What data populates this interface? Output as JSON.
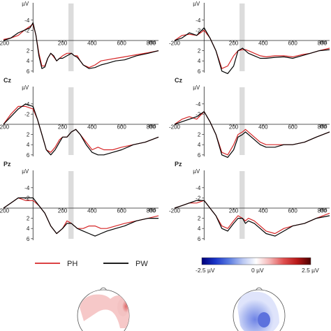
{
  "chart_data": [
    {
      "panel": "left-top",
      "electrode": "",
      "type": "line",
      "ylabel": "µV",
      "xlabel": "ms",
      "x_ticks": [
        "-200",
        "200",
        "400",
        "600",
        "800"
      ],
      "y_ticks": [
        "-4",
        "-2",
        "2",
        "4",
        "6"
      ],
      "xlim": [
        -200,
        850
      ],
      "ylim": [
        -6,
        6.5
      ],
      "highlight_ms": [
        240,
        275
      ],
      "series": [
        {
          "name": "PH",
          "color": "#d62728",
          "x": [
            -200,
            -150,
            -100,
            -60,
            -20,
            0,
            20,
            40,
            60,
            80,
            100,
            120,
            140,
            160,
            180,
            200,
            230,
            260,
            280,
            300,
            320,
            340,
            380,
            420,
            460,
            500,
            560,
            620,
            700,
            780,
            850
          ],
          "y": [
            -0.2,
            -0.5,
            -1.0,
            -2.0,
            -2.8,
            -3.2,
            -1.0,
            2.5,
            5.0,
            5.0,
            3.5,
            2.5,
            3.2,
            4.0,
            3.5,
            3.0,
            2.5,
            2.5,
            3.0,
            3.0,
            4.0,
            4.8,
            5.3,
            4.8,
            4.0,
            3.8,
            3.5,
            3.2,
            2.8,
            2.4,
            2.0
          ]
        },
        {
          "name": "PW",
          "color": "#000000",
          "x": [
            -200,
            -150,
            -100,
            -60,
            -20,
            0,
            20,
            40,
            60,
            80,
            100,
            120,
            140,
            160,
            180,
            200,
            230,
            260,
            280,
            300,
            320,
            340,
            380,
            420,
            460,
            500,
            560,
            620,
            700,
            780,
            850
          ],
          "y": [
            0.0,
            -0.5,
            -1.5,
            -2.0,
            -2.5,
            -3.5,
            -1.0,
            3.0,
            5.5,
            5.2,
            3.5,
            2.5,
            3.0,
            4.0,
            3.5,
            3.5,
            3.0,
            2.5,
            3.0,
            3.3,
            4.0,
            4.8,
            5.5,
            5.3,
            4.8,
            4.5,
            4.0,
            3.8,
            3.0,
            2.5,
            2.0
          ]
        }
      ]
    },
    {
      "panel": "right-top",
      "electrode": "",
      "type": "line",
      "ylabel": "µV",
      "xlabel": "ms",
      "x_ticks": [
        "-200",
        "200",
        "400",
        "600",
        "800"
      ],
      "y_ticks": [
        "-4",
        "-2",
        "2",
        "4",
        "6"
      ],
      "xlim": [
        -200,
        850
      ],
      "ylim": [
        -6,
        6.5
      ],
      "highlight_ms": [
        240,
        275
      ],
      "series": [
        {
          "name": "PH",
          "color": "#d62728",
          "x": [
            -200,
            -150,
            -100,
            -50,
            0,
            40,
            80,
            120,
            160,
            200,
            230,
            260,
            280,
            300,
            340,
            380,
            420,
            480,
            540,
            600,
            660,
            720,
            780,
            850
          ],
          "y": [
            0.0,
            -1.0,
            -1.2,
            -1.0,
            -2.0,
            -0.5,
            2.0,
            5.5,
            5.0,
            3.0,
            2.0,
            1.8,
            1.8,
            2.0,
            2.5,
            3.0,
            3.2,
            3.0,
            3.0,
            3.2,
            2.8,
            2.5,
            2.0,
            1.5
          ]
        },
        {
          "name": "PW",
          "color": "#000000",
          "x": [
            -200,
            -150,
            -100,
            -50,
            0,
            40,
            80,
            120,
            160,
            200,
            230,
            260,
            280,
            300,
            340,
            380,
            420,
            480,
            540,
            600,
            660,
            720,
            780,
            850
          ],
          "y": [
            0.0,
            -0.5,
            -1.5,
            -1.0,
            -2.5,
            -0.5,
            2.0,
            6.0,
            6.5,
            5.0,
            2.0,
            1.5,
            2.0,
            2.5,
            3.0,
            3.5,
            3.5,
            3.3,
            3.2,
            3.5,
            3.0,
            2.5,
            2.0,
            1.8
          ]
        }
      ]
    },
    {
      "panel": "left-middle",
      "electrode": "Cz",
      "type": "line",
      "ylabel": "µV",
      "xlabel": "ms",
      "x_ticks": [
        "-200",
        "200",
        "400",
        "600",
        "800"
      ],
      "y_ticks": [
        "-4",
        "-2",
        "2",
        "4",
        "6"
      ],
      "xlim": [
        -200,
        850
      ],
      "ylim": [
        -6,
        6.5
      ],
      "highlight_ms": [
        240,
        275
      ],
      "series": [
        {
          "name": "PH",
          "color": "#d62728",
          "x": [
            -200,
            -150,
            -100,
            -50,
            0,
            30,
            60,
            90,
            120,
            150,
            180,
            200,
            230,
            260,
            290,
            320,
            360,
            400,
            440,
            480,
            540,
            600,
            680,
            760,
            850
          ],
          "y": [
            0.0,
            -2.0,
            -3.5,
            -3.5,
            -3.0,
            -1.0,
            2.0,
            5.0,
            5.5,
            4.5,
            3.0,
            2.5,
            2.5,
            1.5,
            1.0,
            2.0,
            3.5,
            5.0,
            4.5,
            5.0,
            5.0,
            4.5,
            4.0,
            3.5,
            2.5
          ]
        },
        {
          "name": "PW",
          "color": "#000000",
          "x": [
            -200,
            -150,
            -100,
            -50,
            0,
            30,
            60,
            90,
            120,
            150,
            180,
            200,
            230,
            260,
            290,
            320,
            360,
            400,
            440,
            480,
            540,
            600,
            680,
            760,
            850
          ],
          "y": [
            0.0,
            -1.5,
            -3.0,
            -4.0,
            -3.5,
            -1.0,
            2.0,
            5.0,
            6.0,
            5.0,
            3.5,
            2.5,
            2.5,
            1.5,
            1.0,
            2.0,
            4.0,
            5.5,
            6.0,
            6.0,
            5.5,
            5.0,
            4.0,
            3.5,
            2.5
          ]
        }
      ]
    },
    {
      "panel": "right-middle",
      "electrode": "Cz",
      "type": "line",
      "ylabel": "µV",
      "xlabel": "ms",
      "x_ticks": [
        "-200",
        "200",
        "400",
        "600",
        "800"
      ],
      "y_ticks": [
        "-4",
        "-2",
        "2",
        "4",
        "6"
      ],
      "xlim": [
        -200,
        850
      ],
      "ylim": [
        -6,
        6.5
      ],
      "highlight_ms": [
        240,
        275
      ],
      "series": [
        {
          "name": "PH",
          "color": "#d62728",
          "x": [
            -200,
            -150,
            -100,
            -50,
            0,
            40,
            80,
            120,
            160,
            200,
            230,
            260,
            280,
            300,
            340,
            380,
            420,
            480,
            540,
            600,
            680,
            760,
            850
          ],
          "y": [
            0.0,
            -1.0,
            -1.5,
            -1.0,
            -2.5,
            -0.5,
            2.0,
            5.5,
            6.0,
            4.0,
            2.0,
            1.5,
            1.0,
            1.5,
            2.5,
            3.5,
            4.0,
            4.0,
            4.0,
            4.0,
            3.5,
            2.5,
            1.5
          ]
        },
        {
          "name": "PW",
          "color": "#000000",
          "x": [
            -200,
            -150,
            -100,
            -50,
            0,
            40,
            80,
            120,
            160,
            200,
            230,
            260,
            280,
            300,
            340,
            380,
            420,
            480,
            540,
            600,
            680,
            760,
            850
          ],
          "y": [
            0.0,
            -0.5,
            -1.0,
            -1.5,
            -2.5,
            -0.5,
            2.0,
            6.0,
            6.5,
            5.0,
            2.5,
            2.0,
            1.5,
            2.0,
            3.0,
            4.0,
            4.5,
            4.5,
            4.0,
            4.0,
            3.5,
            2.5,
            1.5
          ]
        }
      ]
    },
    {
      "panel": "left-bottom",
      "electrode": "Pz",
      "type": "line",
      "ylabel": "µV",
      "xlabel": "ms",
      "x_ticks": [
        "-200",
        "200",
        "400",
        "600",
        "800"
      ],
      "y_ticks": [
        "-4",
        "-2",
        "2",
        "4",
        "6"
      ],
      "xlim": [
        -200,
        850
      ],
      "ylim": [
        -6,
        6.5
      ],
      "highlight_ms": [
        240,
        275
      ],
      "series": [
        {
          "name": "PH",
          "color": "#d62728",
          "x": [
            -200,
            -150,
            -100,
            -50,
            0,
            40,
            80,
            120,
            160,
            200,
            230,
            260,
            280,
            300,
            340,
            380,
            420,
            460,
            500,
            560,
            620,
            700,
            780,
            850
          ],
          "y": [
            0.0,
            -1.0,
            -2.0,
            -1.5,
            -1.5,
            -0.5,
            1.0,
            3.5,
            5.0,
            4.0,
            2.5,
            3.0,
            3.5,
            4.0,
            4.0,
            3.5,
            3.5,
            4.0,
            4.0,
            3.5,
            3.0,
            2.5,
            2.0,
            1.5
          ]
        },
        {
          "name": "PW",
          "color": "#000000",
          "x": [
            -200,
            -150,
            -100,
            -50,
            0,
            40,
            80,
            120,
            160,
            200,
            230,
            260,
            280,
            300,
            340,
            380,
            420,
            460,
            500,
            560,
            620,
            700,
            780,
            850
          ],
          "y": [
            0.0,
            -1.0,
            -2.0,
            -2.0,
            -2.0,
            -0.5,
            1.0,
            3.5,
            5.0,
            4.0,
            3.0,
            3.0,
            3.5,
            4.0,
            4.5,
            5.0,
            5.5,
            5.0,
            4.5,
            4.0,
            3.5,
            2.5,
            2.0,
            2.0
          ]
        }
      ]
    },
    {
      "panel": "right-bottom",
      "electrode": "Pz",
      "type": "line",
      "ylabel": "µV",
      "xlabel": "ms",
      "x_ticks": [
        "-200",
        "200",
        "400",
        "600",
        "800"
      ],
      "y_ticks": [
        "-4",
        "-2",
        "2",
        "4",
        "6"
      ],
      "xlim": [
        -200,
        850
      ],
      "ylim": [
        -6,
        6.5
      ],
      "highlight_ms": [
        240,
        275
      ],
      "series": [
        {
          "name": "PH",
          "color": "#d62728",
          "x": [
            -200,
            -150,
            -100,
            -50,
            0,
            40,
            80,
            120,
            160,
            200,
            230,
            260,
            280,
            300,
            340,
            380,
            420,
            480,
            540,
            600,
            680,
            760,
            850
          ],
          "y": [
            0.0,
            -0.5,
            -1.0,
            -1.0,
            -1.5,
            0.0,
            1.5,
            3.5,
            4.0,
            2.5,
            1.5,
            2.0,
            2.5,
            2.0,
            2.5,
            3.5,
            4.5,
            5.0,
            4.0,
            3.5,
            3.0,
            2.0,
            1.0
          ]
        },
        {
          "name": "PW",
          "color": "#000000",
          "x": [
            -200,
            -150,
            -100,
            -50,
            0,
            40,
            80,
            120,
            160,
            200,
            230,
            260,
            280,
            300,
            340,
            380,
            420,
            480,
            540,
            600,
            680,
            760,
            850
          ],
          "y": [
            0.0,
            -0.5,
            -1.0,
            -1.5,
            -1.5,
            0.0,
            1.5,
            4.0,
            4.5,
            3.0,
            2.0,
            2.0,
            3.0,
            2.5,
            3.0,
            4.0,
            5.0,
            5.5,
            4.5,
            3.5,
            3.0,
            2.0,
            1.5
          ]
        }
      ]
    }
  ],
  "legend": {
    "items": [
      {
        "label": "PH",
        "color": "#d62728"
      },
      {
        "label": "PW",
        "color": "#000000"
      }
    ]
  },
  "colorbar": {
    "min_label": "-2.5 µV",
    "mid_label": "0 µV",
    "max_label": "2.5 µV",
    "min": -2.5,
    "max": 2.5,
    "colors": [
      "#00007a",
      "#1a35c8",
      "#5a7be0",
      "#b8c6f2",
      "#ffffff",
      "#f4b4b4",
      "#e05050",
      "#b81818",
      "#4d0000"
    ]
  },
  "topomaps": [
    {
      "name": "left-topomap",
      "sign": "positive"
    },
    {
      "name": "right-topomap",
      "sign": "negative"
    }
  ]
}
